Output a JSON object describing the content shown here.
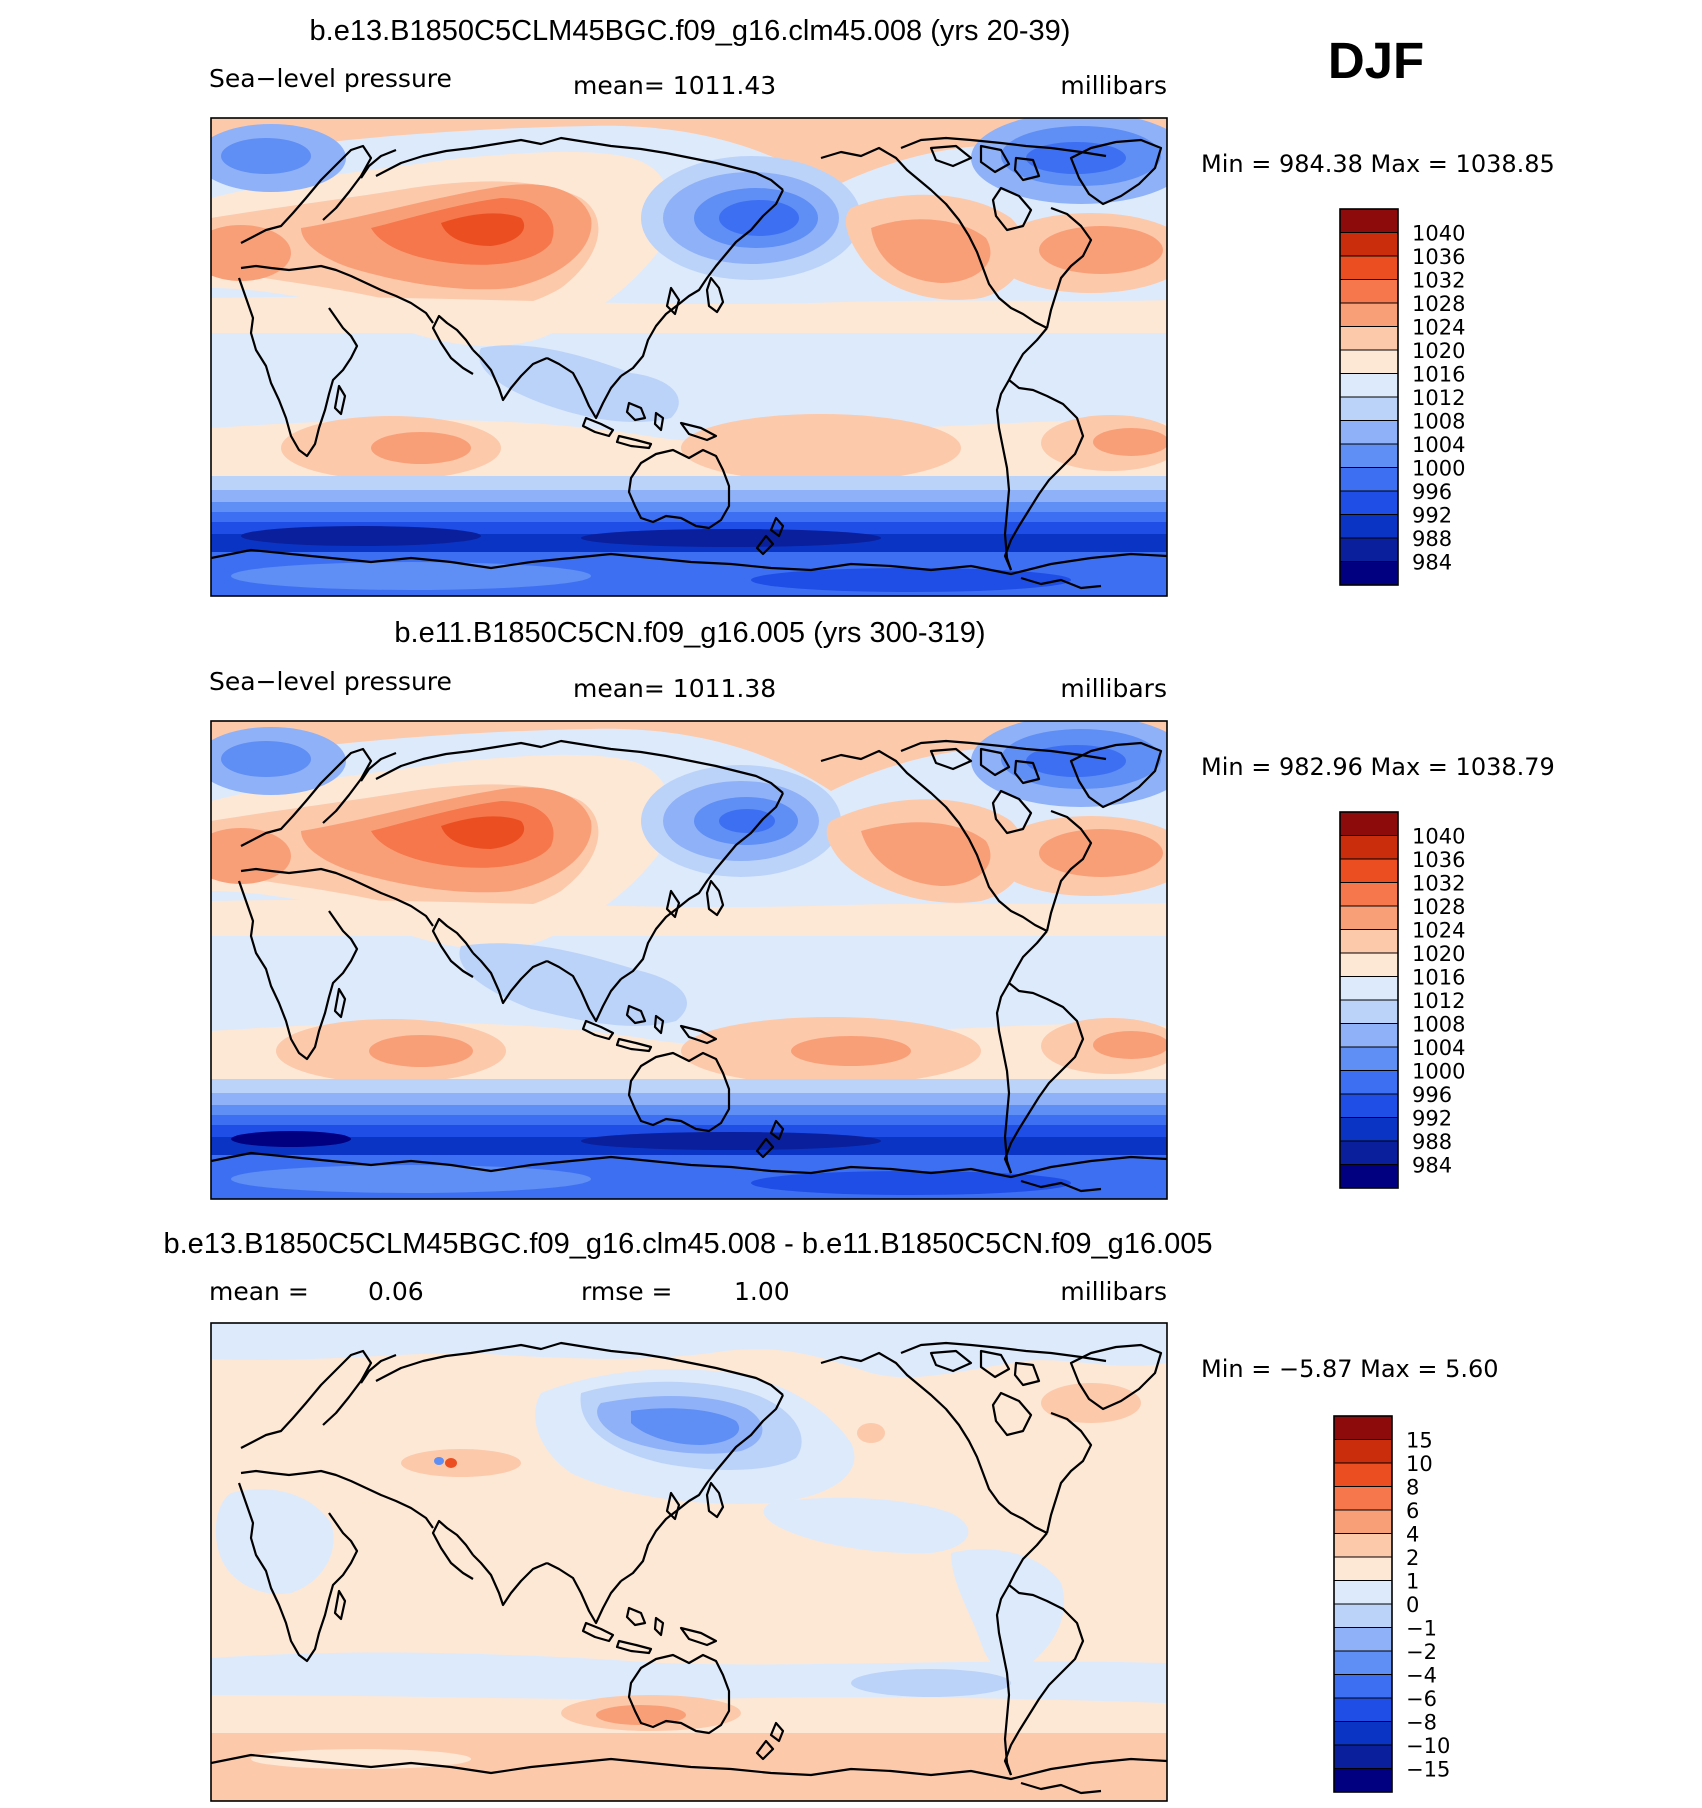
{
  "season": "DJF",
  "colors": {
    "pressure": [
      "#000080",
      "#0a1f9c",
      "#0a35c4",
      "#1f4ee6",
      "#3d6ff2",
      "#5f8ef5",
      "#8fb1f7",
      "#bcd3f9",
      "#ddeafb",
      "#fde8d6",
      "#fcc9ab",
      "#f99f77",
      "#f5774b",
      "#eb4f21",
      "#c92d0b",
      "#8e0b0b"
    ],
    "difference": [
      "#000080",
      "#0a1f9c",
      "#0a35c4",
      "#1f4ee6",
      "#3d6ff2",
      "#5f8ef5",
      "#8fb1f7",
      "#bcd3f9",
      "#ddeafb",
      "#fde8d6",
      "#fcc9ab",
      "#f99f77",
      "#f5774b",
      "#eb4f21",
      "#c92d0b",
      "#8e0b0b"
    ]
  },
  "chart_data": [
    {
      "type": "heatmap",
      "title": "b.e13.B1850C5CLM45BGC.f09_g16.clm45.008 (yrs 20-39)",
      "left_label": "Sea−level pressure",
      "mean_text": "mean=  1011.43",
      "units": "millibars",
      "minmax": "Min  =  984.38  Max  =  1038.85",
      "min": 984.38,
      "max": 1038.85,
      "mean": 1011.43,
      "field": "sea-level pressure climatology",
      "levels": [
        "1040",
        "1036",
        "1032",
        "1028",
        "1024",
        "1020",
        "1016",
        "1012",
        "1008",
        "1004",
        "1000",
        "996",
        "992",
        "988",
        "984"
      ]
    },
    {
      "type": "heatmap",
      "title": "b.e11.B1850C5CN.f09_g16.005 (yrs 300-319)",
      "left_label": "Sea−level pressure",
      "mean_text": "mean=  1011.38",
      "units": "millibars",
      "minmax": "Min  =  982.96  Max  =  1038.79",
      "min": 982.96,
      "max": 1038.79,
      "mean": 1011.38,
      "field": "sea-level pressure climatology",
      "levels": [
        "1040",
        "1036",
        "1032",
        "1028",
        "1024",
        "1020",
        "1016",
        "1012",
        "1008",
        "1004",
        "1000",
        "996",
        "992",
        "988",
        "984"
      ]
    },
    {
      "type": "heatmap",
      "title": "b.e13.B1850C5CLM45BGC.f09_g16.clm45.008 - b.e11.B1850C5CN.f09_g16.005",
      "mean_label": "mean  =",
      "mean_value": "0.06",
      "rmse_label": "rmse  =",
      "rmse_value": "1.00",
      "units": "millibars",
      "minmax": "Min  =   −5.87  Max  =     5.60",
      "min": -5.87,
      "max": 5.6,
      "mean": 0.06,
      "rmse": 1.0,
      "field": "sea-level pressure difference",
      "levels": [
        "15",
        "10",
        "8",
        "6",
        "4",
        "2",
        "1",
        "0",
        "−1",
        "−2",
        "−4",
        "−6",
        "−8",
        "−10",
        "−15"
      ]
    }
  ]
}
